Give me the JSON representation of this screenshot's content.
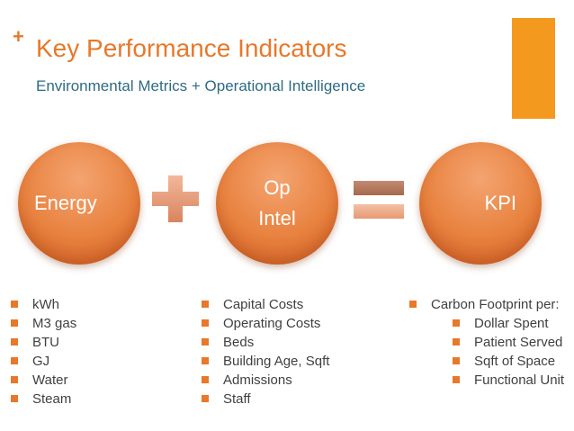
{
  "slide": {
    "title": "Key Performance Indicators",
    "subtitle": "Environmental Metrics + Operational Intelligence",
    "accent_color": "#f39a1e",
    "title_color": "#e8782a",
    "subtitle_color": "#2e6b84"
  },
  "equation": {
    "circle1": "Energy",
    "circle2_line1": "Op",
    "circle2_line2": "Intel",
    "circle3": "KPI",
    "plus_icon": "plus-icon",
    "equals_icon": "equals-icon"
  },
  "columns": {
    "energy": [
      "kWh",
      "M3 gas",
      "BTU",
      "GJ",
      "Water",
      "Steam"
    ],
    "opintel": [
      "Capital Costs",
      "Operating Costs",
      "Beds",
      "Building Age, Sqft",
      "Admissions",
      "Staff"
    ],
    "kpi": {
      "heading": "Carbon Footprint per:",
      "items": [
        "Dollar Spent",
        "Patient Served",
        "Sqft of Space",
        "Functional Unit"
      ]
    }
  }
}
